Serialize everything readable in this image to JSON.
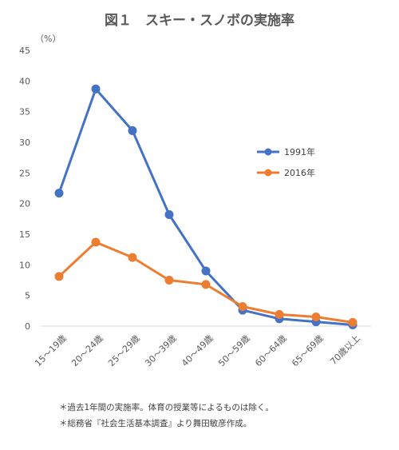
{
  "chart_data": {
    "type": "line",
    "title": "図１　スキー・スノボの実施率",
    "unit_label": "（%）",
    "categories": [
      "15～19歳",
      "20～24歳",
      "25～29歳",
      "30～39歳",
      "40～49歳",
      "50～59歳",
      "60～64歳",
      "65～69歳",
      "70歳以上"
    ],
    "ylim": [
      0,
      45
    ],
    "yticks": [
      0,
      5,
      10,
      15,
      20,
      25,
      30,
      35,
      40,
      45
    ],
    "grid": false,
    "legend_position": "right",
    "series": [
      {
        "name": "1991年",
        "color": "#4472C4",
        "values": [
          21.7,
          38.7,
          31.9,
          18.2,
          9.0,
          2.6,
          1.2,
          0.7,
          0.2
        ]
      },
      {
        "name": "2016年",
        "color": "#ED7D31",
        "values": [
          8.1,
          13.7,
          11.2,
          7.5,
          6.8,
          3.2,
          1.9,
          1.5,
          0.6
        ]
      }
    ]
  },
  "notes": [
    "＊過去1年間の実施率。体育の授業等によるものは除く。",
    "＊総務省『社会生活基本調査』より舞田敏彦作成。"
  ]
}
